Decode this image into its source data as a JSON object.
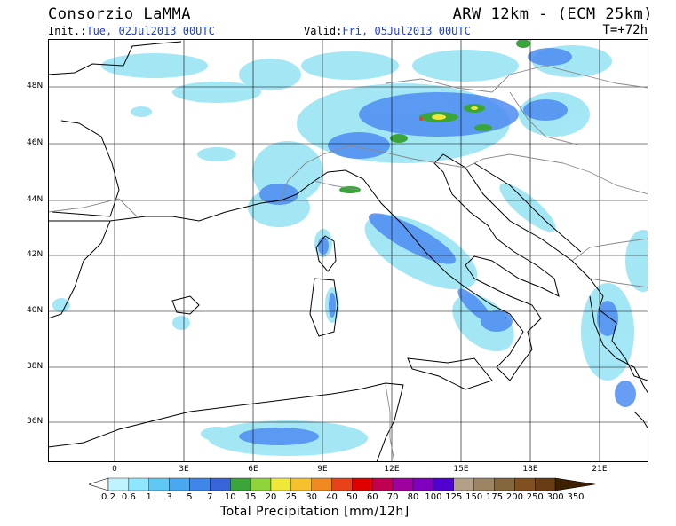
{
  "header": {
    "title": "Consorzio LaMMA",
    "model": "ARW 12km - (ECM 25km)",
    "init_label": "Init.:",
    "init_value": "Tue, 02Jul2013 00UTC",
    "valid_label": "Valid:",
    "valid_value": "Fri, 05Jul2013 00UTC",
    "lead_time": "T=+72h"
  },
  "map": {
    "lat_labels": [
      "48N",
      "46N",
      "44N",
      "42N",
      "40N",
      "38N",
      "36N"
    ],
    "lon_labels": [
      "0",
      "3E",
      "6E",
      "9E",
      "12E",
      "15E",
      "18E",
      "21E"
    ],
    "colors": {
      "coast": "#000000",
      "border": "#888888",
      "light_rain": "#9fe6f5",
      "moderate_rain": "#4e8cf2",
      "heavy_rain": "#3aa63a"
    }
  },
  "legend": {
    "title": "Total Precipitation [mm/12h]",
    "labels": [
      "0.2",
      "0.6",
      "1",
      "3",
      "5",
      "7",
      "10",
      "15",
      "20",
      "25",
      "30",
      "40",
      "50",
      "60",
      "70",
      "80",
      "100",
      "125",
      "150",
      "175",
      "200",
      "250",
      "300",
      "350"
    ],
    "colors": [
      "#ffffff",
      "#bff4ff",
      "#8fe6ff",
      "#5fc8f5",
      "#4aa8f0",
      "#3f86ea",
      "#3764d8",
      "#3aa63a",
      "#8ed43a",
      "#f0e838",
      "#f5c22c",
      "#f08a20",
      "#e84218",
      "#e00000",
      "#c00050",
      "#a000a0",
      "#8000c0",
      "#5000d0",
      "#b4a088",
      "#9c8464",
      "#84683c",
      "#805020",
      "#6a3c14",
      "#3c2000"
    ]
  }
}
